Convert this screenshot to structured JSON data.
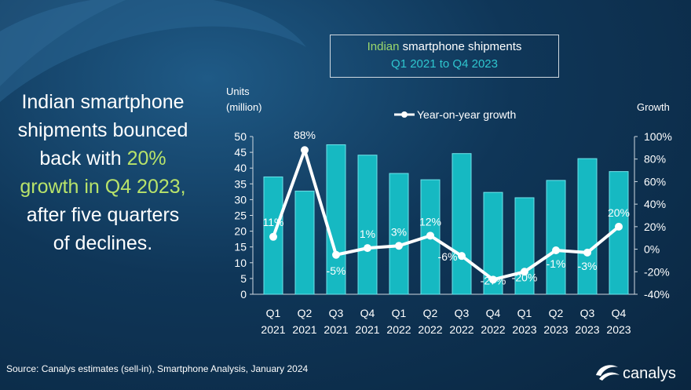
{
  "headline": {
    "line1": "Indian smartphone",
    "line2": "shipments bounced",
    "line3_pre": "back with ",
    "line3_hl": "20%",
    "line4_hl": "growth in Q4 2023,",
    "line5": "after five quarters",
    "line6": "of declines."
  },
  "title": {
    "line1_colored": "Indian",
    "line1_rest": " smartphone shipments",
    "line2": "Q1 2021 to Q4 2023"
  },
  "source": "Source:  Canalys estimates (sell-in), Smartphone Analysis, January 2024",
  "logo_text": "canalys",
  "colors": {
    "bar": "#16b9c2",
    "bar_stroke": "#6fe3ea",
    "line": "#ffffff",
    "highlight": "#b8e36a",
    "title_quarter": "#2fc6cf"
  },
  "chart_data": {
    "type": "bar",
    "categories": [
      "Q1\n2021",
      "Q2\n2021",
      "Q3\n2021",
      "Q4\n2021",
      "Q1\n2022",
      "Q2\n2022",
      "Q3\n2022",
      "Q4\n2022",
      "Q1\n2023",
      "Q2\n2023",
      "Q3\n2023",
      "Q4\n2023"
    ],
    "category_lines": [
      [
        "Q1",
        "2021"
      ],
      [
        "Q2",
        "2021"
      ],
      [
        "Q3",
        "2021"
      ],
      [
        "Q4",
        "2021"
      ],
      [
        "Q1",
        "2022"
      ],
      [
        "Q2",
        "2022"
      ],
      [
        "Q3",
        "2022"
      ],
      [
        "Q4",
        "2022"
      ],
      [
        "Q1",
        "2023"
      ],
      [
        "Q2",
        "2023"
      ],
      [
        "Q3",
        "2023"
      ],
      [
        "Q4",
        "2023"
      ]
    ],
    "series": [
      {
        "name": "",
        "type": "bar",
        "axis": "left",
        "values": [
          37.2,
          32.7,
          47.4,
          44.1,
          38.3,
          36.3,
          44.6,
          32.3,
          30.6,
          36.1,
          43.0,
          38.9
        ]
      },
      {
        "name": "Year-on-year growth",
        "type": "line",
        "axis": "right",
        "values": [
          11,
          88,
          -5,
          1,
          3,
          12,
          -6,
          -27,
          -20,
          -1,
          -3,
          20
        ],
        "labels": [
          "11%",
          "88%",
          "-5%",
          "1%",
          "3%",
          "12%",
          "-6%",
          "-27%",
          "-20%",
          "-1%",
          "-3%",
          "20%"
        ]
      }
    ],
    "ylabel_left": [
      "Units",
      "(million)"
    ],
    "ylabel_right": "Growth",
    "ylim_left": [
      0,
      50
    ],
    "yticks_left": [
      0,
      5,
      10,
      15,
      20,
      25,
      30,
      35,
      40,
      45,
      50
    ],
    "ylim_right": [
      -40,
      100
    ],
    "yticks_right": [
      "-40%",
      "-20%",
      "0%",
      "20%",
      "40%",
      "60%",
      "80%",
      "100%"
    ],
    "yticks_right_values": [
      -40,
      -20,
      0,
      20,
      40,
      60,
      80,
      100
    ],
    "grid": false,
    "legend_position": "top"
  }
}
